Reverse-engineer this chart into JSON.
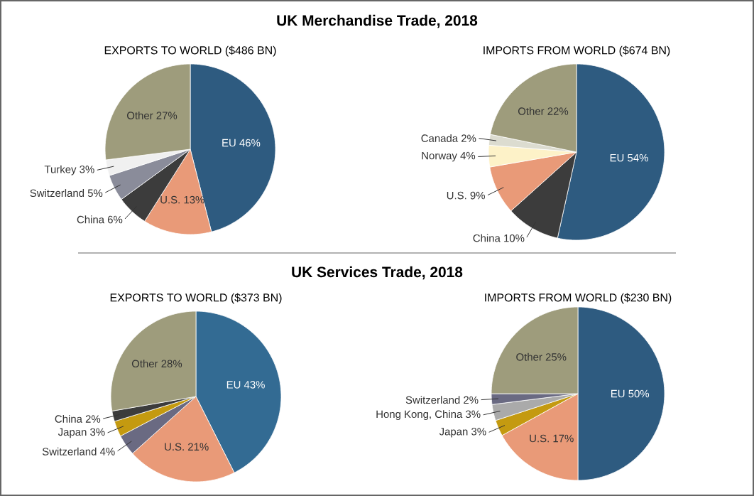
{
  "chart_data": [
    {
      "type": "pie",
      "title": "EXPORTS TO WORLD ($486 BN)",
      "annotations": [
        "UK Merchandise Trade, 2018"
      ],
      "categories": [
        "EU",
        "U.S.",
        "China",
        "Switzerland",
        "Turkey",
        "Other"
      ],
      "values": [
        46,
        13,
        6,
        5,
        3,
        27
      ],
      "value_labels": [
        "46%",
        "13%",
        "6%",
        "5%",
        "3%",
        "27%"
      ],
      "colors": [
        "#2e5b80",
        "#e99a78",
        "#3c3c3c",
        "#8a8c9a",
        "#f0f0f0",
        "#9e9c7c"
      ]
    },
    {
      "type": "pie",
      "title": "IMPORTS FROM WORLD ($674 BN)",
      "categories": [
        "EU",
        "China",
        "U.S.",
        "Norway",
        "Canada",
        "Other"
      ],
      "values": [
        54,
        10,
        9,
        4,
        2,
        22
      ],
      "value_labels": [
        "54%",
        "10%",
        "9%",
        "4%",
        "2%",
        "22%"
      ],
      "colors": [
        "#2e5b80",
        "#3c3c3c",
        "#e99a78",
        "#fdf2c8",
        "#dcdcd0",
        "#9e9c7c"
      ]
    },
    {
      "type": "pie",
      "title": "EXPORTS TO WORLD ($373 BN)",
      "annotations": [
        "UK Services Trade, 2018"
      ],
      "categories": [
        "EU",
        "U.S.",
        "Switzerland",
        "Japan",
        "China",
        "Other"
      ],
      "values": [
        43,
        21,
        4,
        3,
        2,
        28
      ],
      "value_labels": [
        "43%",
        "21%",
        "4%",
        "3%",
        "2%",
        "28%"
      ],
      "colors": [
        "#336b93",
        "#e99a78",
        "#6a6a82",
        "#c49a10",
        "#3c3c3c",
        "#9e9c7c"
      ]
    },
    {
      "type": "pie",
      "title": "IMPORTS FROM WORLD ($230 BN)",
      "categories": [
        "EU",
        "U.S.",
        "Japan",
        "Hong Kong, China",
        "Switzerland",
        "Other"
      ],
      "values": [
        50,
        17,
        3,
        3,
        2,
        25
      ],
      "value_labels": [
        "50%",
        "17%",
        "3%",
        "3%",
        "2%",
        "25%"
      ],
      "colors": [
        "#2e5b80",
        "#e99a78",
        "#c49a10",
        "#aaaaaa",
        "#6a6a82",
        "#9e9c7c"
      ]
    }
  ]
}
